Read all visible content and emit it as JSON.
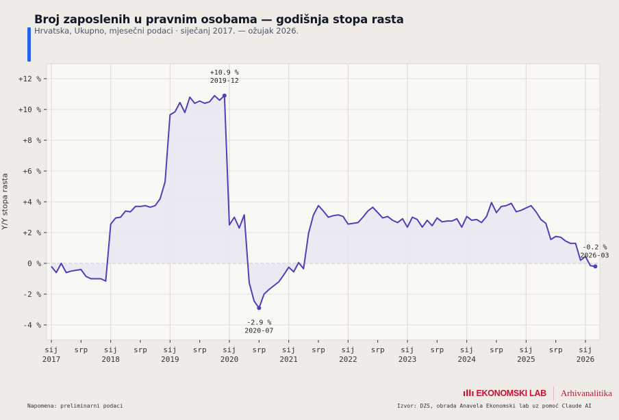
{
  "header": {
    "title": "Broj zaposlenih u pravnim osobama — godišnja stopa rasta",
    "subtitle": "Hrvatska, Ukupno, mjesečni podaci · siječanj 2017. — ožujak 2026."
  },
  "colors": {
    "line": "#4a40b8",
    "fill": "#e9e6f1",
    "accent": "#2563eb",
    "brand": "#c8102e"
  },
  "chart_data": {
    "type": "line",
    "title": "Broj zaposlenih u pravnim osobama — godišnja stopa rasta",
    "ylabel": "Y/Y stopa rasta",
    "xlabel": "",
    "ylim": [
      -5,
      13
    ],
    "yticks": [
      12,
      10,
      8,
      6,
      4,
      2,
      0,
      -2,
      -4
    ],
    "ytick_labels": [
      "+12 %",
      "+10 %",
      "+8 %",
      "+6 %",
      "+4 %",
      "+2 %",
      "0 %",
      "-2 %",
      "-4 %"
    ],
    "xticks": [
      {
        "m": 0,
        "l1": "sij",
        "l2": "2017"
      },
      {
        "m": 6,
        "l1": "srp",
        "l2": ""
      },
      {
        "m": 12,
        "l1": "sij",
        "l2": "2018"
      },
      {
        "m": 18,
        "l1": "srp",
        "l2": ""
      },
      {
        "m": 24,
        "l1": "sij",
        "l2": "2019"
      },
      {
        "m": 30,
        "l1": "srp",
        "l2": ""
      },
      {
        "m": 36,
        "l1": "sij",
        "l2": "2020"
      },
      {
        "m": 42,
        "l1": "srp",
        "l2": ""
      },
      {
        "m": 48,
        "l1": "sij",
        "l2": "2021"
      },
      {
        "m": 54,
        "l1": "srp",
        "l2": ""
      },
      {
        "m": 60,
        "l1": "sij",
        "l2": "2022"
      },
      {
        "m": 66,
        "l1": "srp",
        "l2": ""
      },
      {
        "m": 72,
        "l1": "sij",
        "l2": "2023"
      },
      {
        "m": 78,
        "l1": "srp",
        "l2": ""
      },
      {
        "m": 84,
        "l1": "sij",
        "l2": "2024"
      },
      {
        "m": 90,
        "l1": "srp",
        "l2": ""
      },
      {
        "m": 96,
        "l1": "sij",
        "l2": "2025"
      },
      {
        "m": 102,
        "l1": "srp",
        "l2": ""
      },
      {
        "m": 108,
        "l1": "sij",
        "l2": "2026"
      }
    ],
    "start": "2017-01",
    "series": [
      {
        "name": "Y/Y stopa rasta",
        "values": [
          -0.2,
          -0.6,
          0.0,
          -0.6,
          -0.5,
          -0.45,
          -0.4,
          -0.85,
          -1.0,
          -1.0,
          -1.0,
          -1.15,
          2.55,
          2.95,
          3.0,
          3.4,
          3.35,
          3.7,
          3.7,
          3.75,
          3.65,
          3.75,
          4.2,
          5.3,
          9.65,
          9.85,
          10.45,
          9.8,
          10.8,
          10.4,
          10.55,
          10.4,
          10.5,
          10.9,
          10.6,
          10.9,
          2.5,
          3.0,
          2.3,
          3.15,
          -1.25,
          -2.45,
          -2.9,
          -2.0,
          -1.7,
          -1.45,
          -1.2,
          -0.75,
          -0.25,
          -0.55,
          0.05,
          -0.35,
          1.95,
          3.15,
          3.75,
          3.4,
          3.0,
          3.1,
          3.15,
          3.05,
          2.55,
          2.6,
          2.65,
          3.0,
          3.4,
          3.65,
          3.3,
          2.95,
          3.05,
          2.8,
          2.65,
          2.9,
          2.35,
          3.0,
          2.85,
          2.35,
          2.8,
          2.45,
          2.95,
          2.7,
          2.75,
          2.75,
          2.9,
          2.35,
          3.05,
          2.8,
          2.85,
          2.65,
          3.05,
          3.95,
          3.3,
          3.7,
          3.75,
          3.9,
          3.35,
          3.45,
          3.6,
          3.75,
          3.35,
          2.85,
          2.6,
          1.55,
          1.75,
          1.7,
          1.45,
          1.3,
          1.3,
          0.2,
          0.45,
          -0.15,
          -0.2
        ]
      }
    ],
    "annotations": [
      {
        "m": 35,
        "value": 10.9,
        "label": "+10.9 %",
        "date": "2019-12",
        "pos": "above"
      },
      {
        "m": 42,
        "value": -2.9,
        "label": "-2.9 %",
        "date": "2020-07",
        "pos": "below"
      },
      {
        "m": 110,
        "value": -0.2,
        "label": "-0.2 %",
        "date": "2026-03",
        "pos": "above-left"
      }
    ]
  },
  "footer": {
    "note": "Napomena: preliminarni podaci",
    "source": "Izvor: DZS, obrada Anavela Ekonomski lab uz pomoć Claude AI",
    "logo_main": "EKONOMSKI LAB",
    "logo_secondary": "Arhivanalitika"
  }
}
